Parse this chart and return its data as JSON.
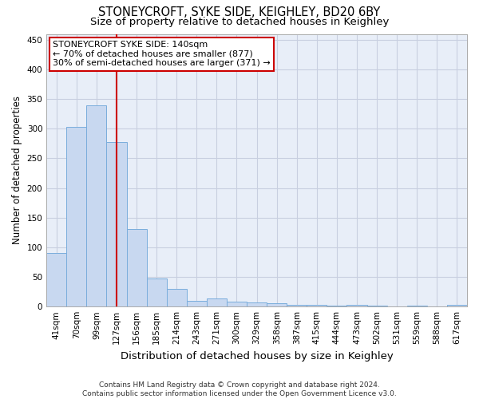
{
  "title": "STONEYCROFT, SYKE SIDE, KEIGHLEY, BD20 6BY",
  "subtitle": "Size of property relative to detached houses in Keighley",
  "xlabel": "Distribution of detached houses by size in Keighley",
  "ylabel": "Number of detached properties",
  "categories": [
    "41sqm",
    "70sqm",
    "99sqm",
    "127sqm",
    "156sqm",
    "185sqm",
    "214sqm",
    "243sqm",
    "271sqm",
    "300sqm",
    "329sqm",
    "358sqm",
    "387sqm",
    "415sqm",
    "444sqm",
    "473sqm",
    "502sqm",
    "531sqm",
    "559sqm",
    "588sqm",
    "617sqm"
  ],
  "values": [
    91,
    303,
    340,
    277,
    131,
    47,
    30,
    10,
    14,
    8,
    7,
    5,
    3,
    3,
    1,
    3,
    1,
    0,
    1,
    0,
    3
  ],
  "bar_color": "#c8d8f0",
  "bar_edge_color": "#7aaddc",
  "red_line_x": 3,
  "annotation_text": "STONEYCROFT SYKE SIDE: 140sqm\n← 70% of detached houses are smaller (877)\n30% of semi-detached houses are larger (371) →",
  "annotation_box_color": "#ffffff",
  "annotation_border_color": "#cc0000",
  "ylim": [
    0,
    460
  ],
  "yticks": [
    0,
    50,
    100,
    150,
    200,
    250,
    300,
    350,
    400,
    450
  ],
  "grid_color": "#c8cfe0",
  "background_color": "#e8eef8",
  "footer_line1": "Contains HM Land Registry data © Crown copyright and database right 2024.",
  "footer_line2": "Contains public sector information licensed under the Open Government Licence v3.0.",
  "title_fontsize": 10.5,
  "subtitle_fontsize": 9.5,
  "xlabel_fontsize": 9.5,
  "ylabel_fontsize": 8.5,
  "tick_fontsize": 7.5,
  "annotation_fontsize": 8,
  "footer_fontsize": 6.5
}
